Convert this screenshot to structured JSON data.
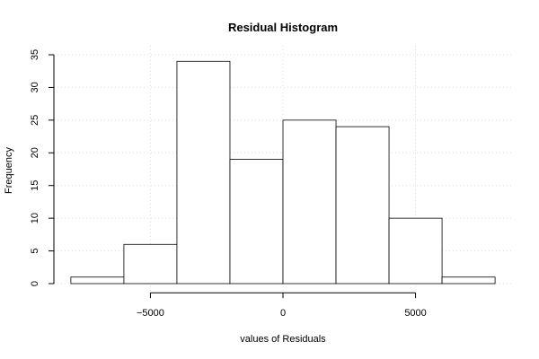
{
  "chart_data": {
    "type": "histogram",
    "title": "Residual Histogram",
    "x_label": "values of Residuals",
    "y_label": "Frequency",
    "bins": [
      -8000,
      -6000,
      -4000,
      -2000,
      0,
      2000,
      4000,
      6000,
      8000
    ],
    "values": [
      1,
      6,
      34,
      19,
      25,
      24,
      10,
      1
    ],
    "color": "#ffffff",
    "edge_color": "#000000",
    "xlim": [
      -8640,
      8640
    ],
    "ylim": [
      -1.4,
      36.4
    ],
    "xticks": [
      {
        "value": -5000,
        "label": "−5000"
      },
      0,
      5000
    ],
    "yticks": [
      0,
      5,
      10,
      15,
      20,
      25,
      30,
      35
    ],
    "grid": true
  }
}
